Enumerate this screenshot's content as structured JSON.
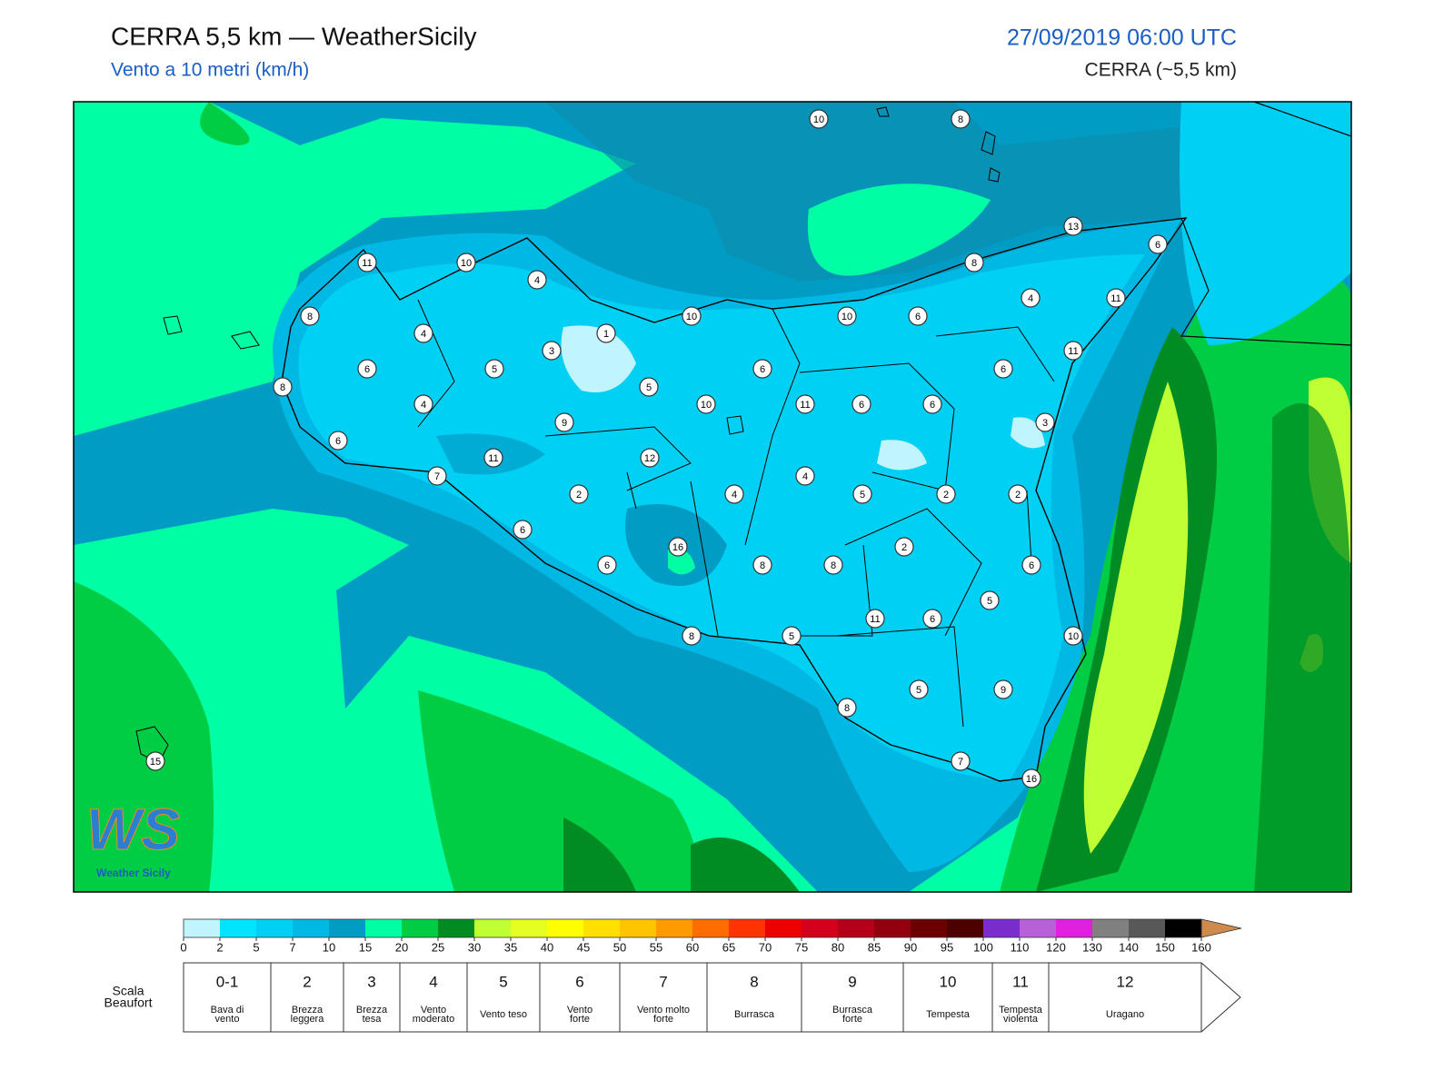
{
  "header": {
    "title": "CERRA 5,5 km — WeatherSicily",
    "subtitle": "Vento a 10 metri (km/h)",
    "datetime": "27/09/2019 06:00 UTC",
    "model": "CERRA (~5,5 km)"
  },
  "map": {
    "stations": [
      10,
      8,
      13,
      6,
      11,
      10,
      4,
      8,
      8,
      10,
      10,
      6,
      4,
      11,
      4,
      1,
      3,
      11,
      6,
      5,
      6,
      6,
      8,
      5,
      4,
      10,
      11,
      6,
      6,
      9,
      3,
      6,
      11,
      12,
      7,
      4,
      2,
      4,
      5,
      2,
      2,
      6,
      16,
      2,
      6,
      8,
      8,
      6,
      5,
      11,
      6,
      8,
      5,
      10,
      5,
      9,
      8,
      7,
      16,
      15
    ],
    "logo": {
      "mark": "WS",
      "name": "Weather Sicily"
    }
  },
  "colorbar": {
    "ticks": [
      0,
      2,
      5,
      7,
      10,
      15,
      20,
      25,
      30,
      35,
      40,
      45,
      50,
      55,
      60,
      65,
      70,
      75,
      80,
      85,
      90,
      95,
      100,
      110,
      120,
      130,
      140,
      150,
      160
    ],
    "colors": [
      "#c0f4ff",
      "#00e4ff",
      "#00d0f4",
      "#00b8e4",
      "#009cc4",
      "#00ffa4",
      "#00cc44",
      "#008c22",
      "#c0ff34",
      "#e4ff20",
      "#ffff00",
      "#ffe000",
      "#ffc400",
      "#ff9a00",
      "#ff6c00",
      "#ff3400",
      "#ec0000",
      "#d4001c",
      "#b40018",
      "#920010",
      "#6c0000",
      "#4c0000",
      "#7a2ccc",
      "#b860d8",
      "#e020e0",
      "#808080",
      "#585858",
      "#000000"
    ],
    "extend_color": "#d08a4c"
  },
  "beaufort": {
    "label": "Scala\nBeaufort",
    "levels": [
      {
        "force": "0-1",
        "description": "Bava di\nvento"
      },
      {
        "force": 2,
        "description": "Brezza\nleggera"
      },
      {
        "force": 3,
        "description": "Brezza\ntesa"
      },
      {
        "force": 4,
        "description": "Vento\nmoderato"
      },
      {
        "force": 5,
        "description": "Vento teso"
      },
      {
        "force": 6,
        "description": "Vento\nforte"
      },
      {
        "force": 7,
        "description": "Vento molto\nforte"
      },
      {
        "force": 8,
        "description": "Burrasca"
      },
      {
        "force": 9,
        "description": "Burrasca\nforte"
      },
      {
        "force": 10,
        "description": "Tempesta"
      },
      {
        "force": 11,
        "description": "Tempesta\nviolenta"
      },
      {
        "force": 12,
        "description": "Uragano"
      }
    ]
  }
}
